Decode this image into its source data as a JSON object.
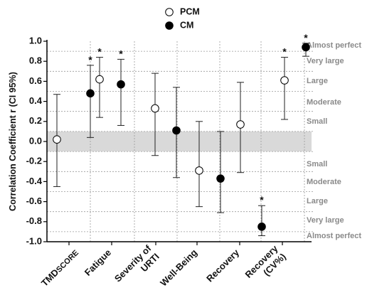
{
  "chart_data": {
    "type": "scatter",
    "ylabel": "Correlation Coefficient r (CI 95%)",
    "ylim": [
      -1.0,
      1.0
    ],
    "yticks": [
      "1.0",
      "0.8",
      "0.6",
      "0.4",
      "0.2",
      "0.0",
      "-0.2",
      "-0.4",
      "-0.6",
      "-0.8",
      "-1.0"
    ],
    "categories": [
      {
        "main": "TMD",
        "sub": "SCORE"
      },
      {
        "main": "Fatigue"
      },
      {
        "main": "Severity of",
        "line2": "URTI"
      },
      {
        "main": "Well-Being"
      },
      {
        "main": "Recovery"
      },
      {
        "main": "Recovery",
        "line2": "(CV%)"
      }
    ],
    "series": [
      {
        "name": "PCM",
        "marker": "open-circle",
        "values": [
          0.02,
          0.62,
          0.33,
          -0.29,
          0.17,
          0.61
        ],
        "lower": [
          -0.45,
          0.24,
          -0.14,
          -0.65,
          -0.31,
          0.22
        ],
        "upper": [
          0.47,
          0.84,
          0.68,
          0.2,
          0.59,
          0.84
        ],
        "significant": [
          false,
          true,
          false,
          false,
          false,
          true
        ]
      },
      {
        "name": "CM",
        "marker": "filled-circle",
        "values": [
          0.48,
          0.57,
          0.11,
          -0.37,
          -0.85,
          0.94
        ],
        "lower": [
          0.04,
          0.16,
          -0.36,
          -0.71,
          -0.94,
          0.85
        ],
        "upper": [
          0.76,
          0.82,
          0.54,
          0.1,
          -0.64,
          0.98
        ],
        "significant": [
          true,
          true,
          false,
          false,
          true,
          true
        ]
      }
    ],
    "significance_marker": "*",
    "trivial_band": [
      -0.1,
      0.1
    ],
    "magnitude_thresholds": [
      {
        "label": "Almost perfect",
        "value": 0.9
      },
      {
        "label": "Very large",
        "value": 0.7
      },
      {
        "label": "Large",
        "value": 0.5
      },
      {
        "label": "Moderate",
        "value": 0.3
      },
      {
        "label": "Small",
        "value": 0.1
      },
      {
        "label": "Small",
        "value": -0.1
      },
      {
        "label": "Moderate",
        "value": -0.3
      },
      {
        "label": "Large",
        "value": -0.5
      },
      {
        "label": "Very large",
        "value": -0.7
      },
      {
        "label": "Almost perfect",
        "value": -0.9
      }
    ],
    "legend_position": "top-center",
    "grid": true
  }
}
